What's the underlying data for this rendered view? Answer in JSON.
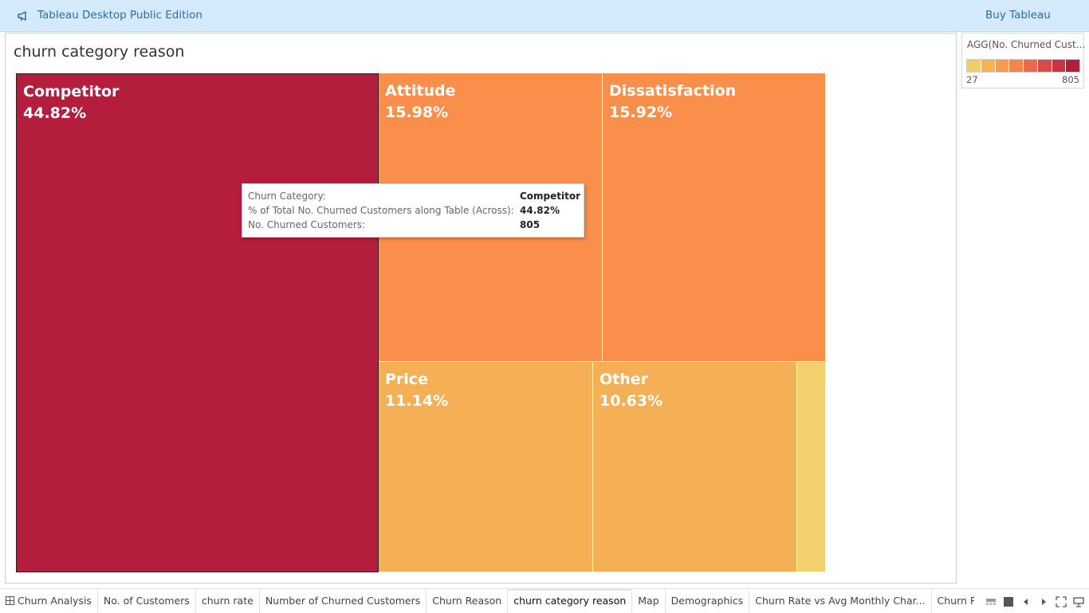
{
  "app": {
    "title": "Tableau Desktop Public Edition",
    "buy_label": "Buy Tableau",
    "icon": "megaphone-icon"
  },
  "sheet": {
    "title": "churn category reason"
  },
  "chart_data": {
    "type": "treemap",
    "title": "churn category reason",
    "measure": "No. Churned Customers",
    "tiles": [
      {
        "name": "Competitor",
        "pct_label": "44.82%",
        "pct": 44.82,
        "color": "#b51d3d",
        "selected": true
      },
      {
        "name": "Attitude",
        "pct_label": "15.98%",
        "pct": 15.98,
        "color": "#f98f4b",
        "selected": false
      },
      {
        "name": "Dissatisfaction",
        "pct_label": "15.92%",
        "pct": 15.92,
        "color": "#f98f4b",
        "selected": false
      },
      {
        "name": "Price",
        "pct_label": "11.14%",
        "pct": 11.14,
        "color": "#f5b056",
        "selected": false
      },
      {
        "name": "Other",
        "pct_label": "10.63%",
        "pct": 10.63,
        "color": "#f5b056",
        "selected": false
      },
      {
        "name": "",
        "pct_label": "",
        "pct": 1.5,
        "color": "#f2d06b",
        "selected": false
      }
    ]
  },
  "tooltip": {
    "rows": [
      {
        "label": "Churn Category:",
        "value": "Competitor"
      },
      {
        "label": "% of Total No. Churned Customers along Table (Across):",
        "value": "44.82%"
      },
      {
        "label": "No. Churned Customers:",
        "value": "805"
      }
    ]
  },
  "legend": {
    "title": "AGG(No. Churned Cust...",
    "min": "27",
    "max": "805",
    "ramp_colors": [
      "#f2cc65",
      "#f5b354",
      "#f79c4d",
      "#f4834c",
      "#e96a4b",
      "#d84c47",
      "#c73344",
      "#b51d3d"
    ]
  },
  "tabs": [
    {
      "label": "Churn Analysis",
      "active": false,
      "icon": "dashboard-grid-icon"
    },
    {
      "label": "No. of Customers",
      "active": false
    },
    {
      "label": "churn rate",
      "active": false
    },
    {
      "label": "Number of Churned Customers",
      "active": false
    },
    {
      "label": "Churn Reason",
      "active": false
    },
    {
      "label": "churn category reason",
      "active": true
    },
    {
      "label": "Map",
      "active": false
    },
    {
      "label": "Demographics",
      "active": false
    },
    {
      "label": "Churn Rate vs Avg Monthly Char...",
      "active": false
    },
    {
      "label": "Churn Rate Vs. Monthly Dat",
      "active": false
    }
  ],
  "tab_controls": [
    "show-filmstrip-icon",
    "show-tabs-icon",
    "prev-sheet-icon",
    "next-sheet-icon",
    "fullscreen-icon",
    "presentation-icon"
  ]
}
